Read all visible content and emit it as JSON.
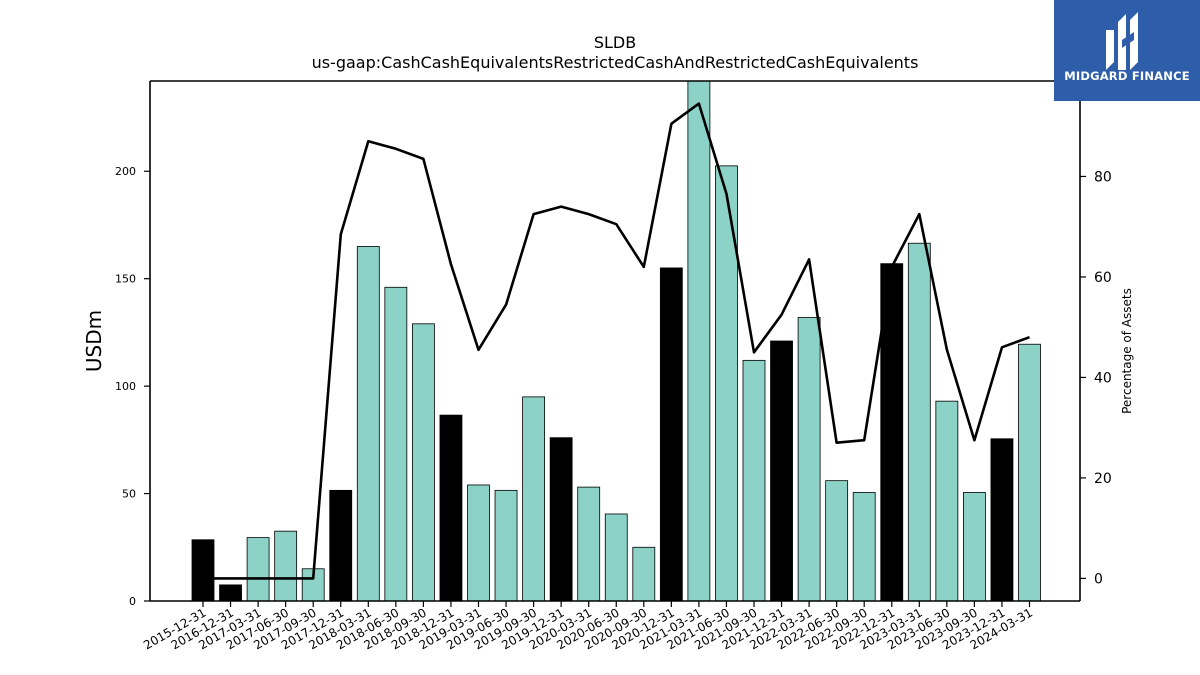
{
  "title": "SLDB",
  "subtitle": "us-gaap:CashCashEquivalentsRestrictedCashAndRestrictedCashEquivalents",
  "logo": {
    "text": "MIDGARD FINANCE",
    "bg_color": "#2e5eaa",
    "mark_color": "#ffffff"
  },
  "chart_data": {
    "type": "bar",
    "categories": [
      "2015-12-31",
      "2016-12-31",
      "2017-03-31",
      "2017-06-30",
      "2017-09-30",
      "2017-12-31",
      "2018-03-31",
      "2018-06-30",
      "2018-09-30",
      "2018-12-31",
      "2019-03-31",
      "2019-06-30",
      "2019-09-30",
      "2019-12-31",
      "2020-03-31",
      "2020-06-30",
      "2020-09-30",
      "2020-12-31",
      "2021-03-31",
      "2021-06-30",
      "2021-09-30",
      "2021-12-31",
      "2022-03-31",
      "2022-06-30",
      "2022-09-30",
      "2022-12-31",
      "2023-03-31",
      "2023-06-30",
      "2023-09-30",
      "2023-12-31",
      "2024-03-31"
    ],
    "series": [
      {
        "type": "bar",
        "axis": "left",
        "values": [
          28.5,
          7.5,
          29.5,
          32.5,
          15,
          51.5,
          165,
          146,
          129,
          86.5,
          54,
          51.5,
          95,
          76,
          53,
          40.5,
          25,
          155,
          242,
          202.5,
          112,
          121,
          132,
          56,
          50.5,
          157,
          166.5,
          93,
          50.5,
          75.5,
          119.5
        ],
        "annual_flags": [
          true,
          true,
          false,
          false,
          false,
          true,
          false,
          false,
          false,
          true,
          false,
          false,
          false,
          true,
          false,
          false,
          false,
          true,
          false,
          false,
          false,
          true,
          false,
          false,
          false,
          true,
          false,
          false,
          false,
          true,
          false
        ],
        "annual_color": "#000000",
        "quarter_color": "#8cd2c7"
      },
      {
        "type": "line",
        "axis": "right",
        "values": [
          0,
          0,
          0,
          0,
          0,
          68.5,
          87,
          85.5,
          83.5,
          62.5,
          45.5,
          54.5,
          72.5,
          74,
          72.5,
          70.5,
          62,
          90.5,
          94.5,
          76.5,
          45,
          52.5,
          63.5,
          27,
          27.5,
          62,
          72.5,
          45.5,
          27.5,
          46,
          48
        ],
        "color": "#000000"
      }
    ],
    "ylabel": "USDm",
    "y2label": "Percentage of Assets",
    "ylim": [
      0,
      242
    ],
    "y2lim": [
      -4.5,
      99
    ],
    "yticks": [
      "0",
      "50",
      "100",
      "150",
      "200"
    ],
    "y2ticks": [
      "0",
      "20",
      "40",
      "60",
      "80"
    ],
    "grid": false
  }
}
